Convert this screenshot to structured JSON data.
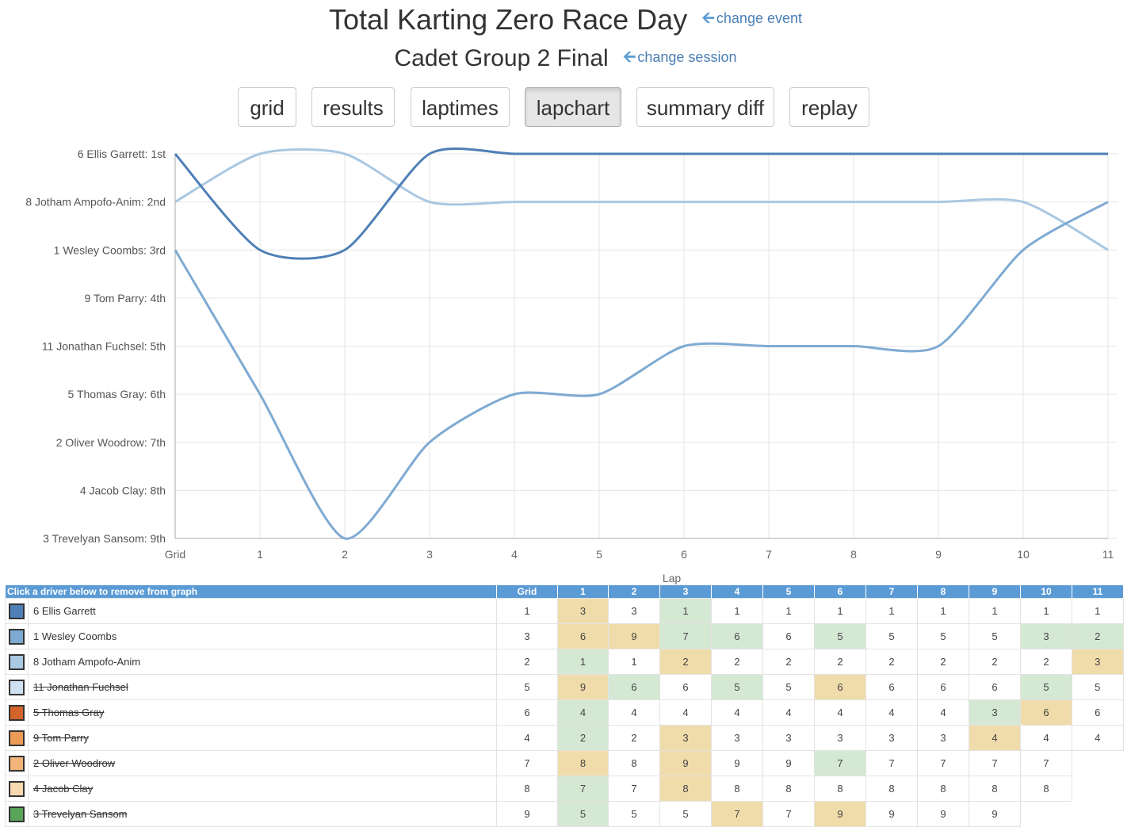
{
  "header": {
    "event_title": "Total Karting Zero Race Day",
    "change_event": "change event",
    "session_title": "Cadet Group 2 Final",
    "change_session": "change session"
  },
  "tabs": [
    {
      "label": "grid",
      "active": false
    },
    {
      "label": "results",
      "active": false
    },
    {
      "label": "laptimes",
      "active": false
    },
    {
      "label": "lapchart",
      "active": true
    },
    {
      "label": "summary diff",
      "active": false
    },
    {
      "label": "replay",
      "active": false
    }
  ],
  "chart_data": {
    "type": "line",
    "xlabel": "Lap",
    "x": [
      "Grid",
      "1",
      "2",
      "3",
      "4",
      "5",
      "6",
      "7",
      "8",
      "9",
      "10",
      "11"
    ],
    "y_categories": [
      "6 Ellis Garrett: 1st",
      "8 Jotham Ampofo-Anim: 2nd",
      "1 Wesley Coombs: 3rd",
      "9 Tom Parry: 4th",
      "11 Jonathan Fuchsel: 5th",
      "5 Thomas Gray: 6th",
      "2 Oliver Woodrow: 7th",
      "4 Jacob Clay: 8th",
      "3 Trevelyan Sansom: 9th"
    ],
    "ylim": [
      1,
      9
    ],
    "y_inverted": true,
    "grid": true,
    "series": [
      {
        "name": "6 Ellis Garrett",
        "color": "#4f7fb6",
        "values": [
          1,
          3,
          3,
          1,
          1,
          1,
          1,
          1,
          1,
          1,
          1,
          1
        ]
      },
      {
        "name": "1 Wesley Coombs",
        "color": "#7eaad2",
        "values": [
          3,
          6,
          9,
          7,
          6,
          6,
          5,
          5,
          5,
          5,
          3,
          2
        ]
      },
      {
        "name": "8 Jotham Ampofo-Anim",
        "color": "#a9c8e2",
        "values": [
          2,
          1,
          1,
          2,
          2,
          2,
          2,
          2,
          2,
          2,
          2,
          3
        ]
      }
    ]
  },
  "table": {
    "header_note": "Click a driver below to remove from graph",
    "columns": [
      "Grid",
      "1",
      "2",
      "3",
      "4",
      "5",
      "6",
      "7",
      "8",
      "9",
      "10",
      "11"
    ],
    "rows": [
      {
        "name": "6 Ellis Garrett",
        "color": "#4f7fb6",
        "active": true,
        "cells": [
          "1",
          "3",
          "3",
          "1",
          "1",
          "1",
          "1",
          "1",
          "1",
          "1",
          "1",
          "1"
        ],
        "marks": [
          "",
          "y",
          "",
          "g",
          "",
          "",
          "",
          "",
          "",
          "",
          "",
          ""
        ]
      },
      {
        "name": "1 Wesley Coombs",
        "color": "#7eaad2",
        "active": true,
        "cells": [
          "3",
          "6",
          "9",
          "7",
          "6",
          "6",
          "5",
          "5",
          "5",
          "5",
          "3",
          "2"
        ],
        "marks": [
          "",
          "y",
          "y",
          "g",
          "g",
          "",
          "g",
          "",
          "",
          "",
          "g",
          "g"
        ]
      },
      {
        "name": "8 Jotham Ampofo-Anim",
        "color": "#a9c8e2",
        "active": true,
        "cells": [
          "2",
          "1",
          "1",
          "2",
          "2",
          "2",
          "2",
          "2",
          "2",
          "2",
          "2",
          "3"
        ],
        "marks": [
          "",
          "g",
          "",
          "y",
          "",
          "",
          "",
          "",
          "",
          "",
          "",
          "y"
        ]
      },
      {
        "name": "11 Jonathan Fuchsel",
        "color": "#cfe0f1",
        "active": false,
        "cells": [
          "5",
          "9",
          "6",
          "6",
          "5",
          "5",
          "6",
          "6",
          "6",
          "6",
          "5",
          "5"
        ],
        "marks": [
          "",
          "y",
          "g",
          "",
          "g",
          "",
          "y",
          "",
          "",
          "",
          "g",
          ""
        ]
      },
      {
        "name": "5 Thomas Gray",
        "color": "#d2642a",
        "active": false,
        "cells": [
          "6",
          "4",
          "4",
          "4",
          "4",
          "4",
          "4",
          "4",
          "4",
          "3",
          "6",
          "6"
        ],
        "marks": [
          "",
          "g",
          "",
          "",
          "",
          "",
          "",
          "",
          "",
          "g",
          "y",
          ""
        ]
      },
      {
        "name": "9 Tom Parry",
        "color": "#ec9a55",
        "active": false,
        "cells": [
          "4",
          "2",
          "2",
          "3",
          "3",
          "3",
          "3",
          "3",
          "3",
          "4",
          "4",
          "4"
        ],
        "marks": [
          "",
          "g",
          "",
          "y",
          "",
          "",
          "",
          "",
          "",
          "y",
          "",
          ""
        ]
      },
      {
        "name": "2 Oliver Woodrow",
        "color": "#f2b479",
        "active": false,
        "cells": [
          "7",
          "8",
          "8",
          "9",
          "9",
          "9",
          "7",
          "7",
          "7",
          "7",
          "7",
          ""
        ],
        "marks": [
          "",
          "y",
          "",
          "y",
          "",
          "",
          "g",
          "",
          "",
          "",
          "",
          ""
        ]
      },
      {
        "name": "4 Jacob Clay",
        "color": "#f8d8b0",
        "active": false,
        "cells": [
          "8",
          "7",
          "7",
          "8",
          "8",
          "8",
          "8",
          "8",
          "8",
          "8",
          "8",
          ""
        ],
        "marks": [
          "",
          "g",
          "",
          "y",
          "",
          "",
          "",
          "",
          "",
          "",
          "",
          ""
        ]
      },
      {
        "name": "3 Trevelyan Sansom",
        "color": "#5aa45a",
        "active": false,
        "cells": [
          "9",
          "5",
          "5",
          "5",
          "7",
          "7",
          "9",
          "9",
          "9",
          "9",
          "",
          ""
        ],
        "marks": [
          "",
          "g",
          "",
          "",
          "y",
          "",
          "y",
          "",
          "",
          "",
          "",
          ""
        ]
      }
    ]
  }
}
